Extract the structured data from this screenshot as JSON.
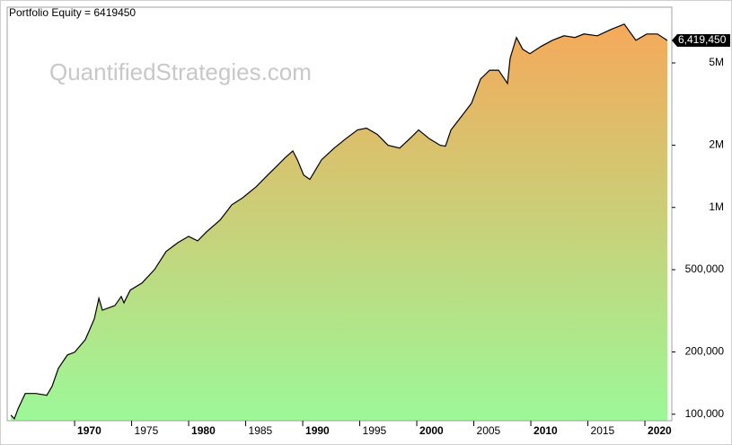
{
  "chart_data": {
    "type": "area",
    "title": "Portfolio Equity = 6419450",
    "watermark": "QuantifiedStrategies.com",
    "last_value_label": "6,419,450",
    "log_scale": true,
    "fill_colors": [
      "#9cf898",
      "#f5a95a"
    ],
    "xlim": [
      1964.09,
      2022.36
    ],
    "xticks": [
      1970,
      1975,
      1980,
      1985,
      1990,
      1995,
      2000,
      2005,
      2010,
      2015,
      2020
    ],
    "ylim": [
      93000,
      9300000
    ],
    "yticks": [
      {
        "value": 100000,
        "label": "100,000"
      },
      {
        "value": 200000,
        "label": "200,000"
      },
      {
        "value": 500000,
        "label": "500,000"
      },
      {
        "value": 1000000,
        "label": "1M"
      },
      {
        "value": 2000000,
        "label": "2M"
      },
      {
        "value": 5000000,
        "label": "5M"
      }
    ],
    "x": [
      1964.41,
      1964.72,
      1965.04,
      1965.67,
      1966.61,
      1967.56,
      1968.03,
      1968.58,
      1969.37,
      1970,
      1970.94,
      1971.73,
      1972.13,
      1972.44,
      1973.54,
      1974.09,
      1974.33,
      1974.88,
      1975.91,
      1977.01,
      1978.03,
      1979.06,
      1980,
      1980.79,
      1981.57,
      1982.76,
      1983.78,
      1984.72,
      1985.91,
      1986.93,
      1987.72,
      1988.5,
      1989.13,
      1989.53,
      1990.08,
      1990.63,
      1991.65,
      1992.76,
      1993.78,
      1994.8,
      1995.59,
      1996.54,
      1997.48,
      1998.5,
      1999.53,
      2000.16,
      2001.1,
      2002.05,
      2002.52,
      2003,
      2004.02,
      2004.8,
      2005.59,
      2006.38,
      2007.17,
      2007.95,
      2008.19,
      2008.74,
      2009.29,
      2009.92,
      2010.87,
      2011.89,
      2012.91,
      2013.86,
      2014.65,
      2015.83,
      2017.01,
      2018.19,
      2019.21,
      2020.16,
      2021.1,
      2021.97
    ],
    "series": [
      {
        "name": "Portfolio Equity",
        "color": "#000000",
        "values": [
          99000,
          95100,
          106200,
          125900,
          125900,
          123400,
          136400,
          166700,
          193600,
          199400,
          229500,
          289200,
          363700,
          318700,
          335600,
          371100,
          345800,
          398300,
          431000,
          501100,
          612400,
          676000,
          725000,
          689700,
          762900,
          870000,
          1030000,
          1112000,
          1258000,
          1434000,
          1584000,
          1750000,
          1877000,
          1701000,
          1434000,
          1367000,
          1701000,
          1938000,
          2149000,
          2371000,
          2419000,
          2255000,
          1998000,
          1938000,
          2191000,
          2371000,
          2149000,
          1998000,
          1978000,
          2371000,
          2806000,
          3194000,
          4180000,
          4610000,
          4610000,
          3981000,
          5270000,
          6634000,
          5821000,
          5541000,
          5999000,
          6436000,
          6764000,
          6634000,
          6904000,
          6764000,
          7257000,
          7706000,
          6436000,
          6904000,
          6904000,
          6419450
        ]
      }
    ]
  }
}
